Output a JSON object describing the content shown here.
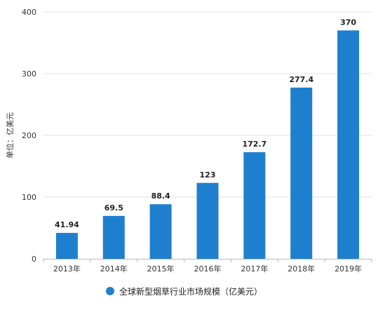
{
  "chart_data": {
    "type": "bar",
    "categories": [
      "2013年",
      "2014年",
      "2015年",
      "2016年",
      "2017年",
      "2018年",
      "2019年"
    ],
    "series": [
      {
        "name": "全球新型烟草行业市场规模（亿美元）",
        "values": [
          41.94,
          69.5,
          88.4,
          123,
          172.7,
          277.4,
          370
        ],
        "value_labels": [
          "41.94",
          "69.5",
          "88.4",
          "123",
          "172.7",
          "277.4",
          "370"
        ]
      }
    ],
    "ylabel": "单位：亿美元",
    "ylim": [
      0,
      400
    ],
    "yticks": [
      0,
      100,
      200,
      300,
      400
    ],
    "grid": true,
    "legend_position": "bottom-center",
    "color": "#1f7fcf"
  }
}
